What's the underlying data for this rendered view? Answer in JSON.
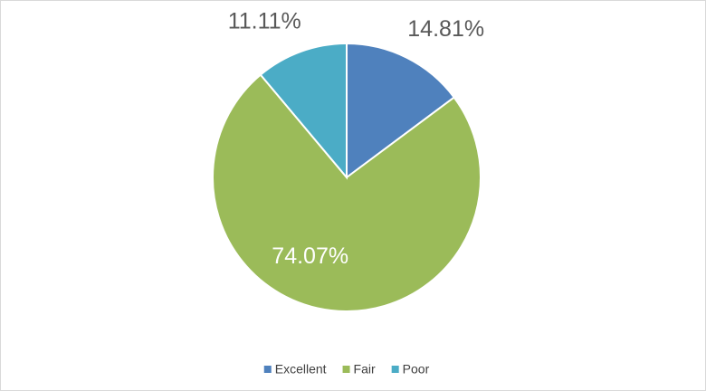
{
  "chart_data": {
    "type": "pie",
    "categories": [
      "Excellent",
      "Fair",
      "Poor"
    ],
    "values": [
      14.81,
      74.07,
      11.11
    ],
    "value_labels": [
      "14.81%",
      "74.07%",
      "11.11%"
    ],
    "colors": [
      "#4f81bd",
      "#9bbb59",
      "#4bacc6"
    ],
    "legend": "bottom"
  }
}
